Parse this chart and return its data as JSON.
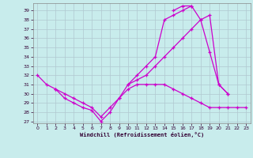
{
  "xlabel": "Windchill (Refroidissement éolien,°C)",
  "background_color": "#c8ecec",
  "grid_color": "#b0c8d0",
  "line_color": "#cc00cc",
  "x_values": [
    0,
    1,
    2,
    3,
    4,
    5,
    6,
    7,
    8,
    9,
    10,
    11,
    12,
    13,
    14,
    15,
    16,
    17,
    18,
    19,
    20,
    21,
    22,
    23
  ],
  "series1": [
    32,
    31,
    30.5,
    29.5,
    29,
    28.5,
    28.2,
    27.0,
    28,
    29.5,
    31,
    31.5,
    32,
    33,
    34,
    35,
    36,
    37,
    38,
    38.5,
    31,
    30,
    null,
    null
  ],
  "series2": [
    null,
    null,
    null,
    null,
    null,
    null,
    null,
    null,
    null,
    null,
    31,
    32,
    33,
    34,
    38,
    38.5,
    39,
    39.5,
    38,
    34.5,
    31,
    30,
    null,
    null
  ],
  "series3": [
    null,
    null,
    null,
    null,
    null,
    null,
    null,
    null,
    null,
    null,
    null,
    null,
    null,
    null,
    null,
    39,
    39.5,
    39.5,
    null,
    null,
    null,
    null,
    null,
    null
  ],
  "series4": [
    null,
    null,
    30.5,
    30,
    29.5,
    29,
    28.5,
    27.5,
    28.5,
    29.5,
    30.5,
    31,
    31,
    31,
    31,
    30.5,
    30,
    29.5,
    29,
    28.5,
    28.5,
    28.5,
    28.5,
    28.5
  ],
  "xlim": [
    -0.5,
    23.5
  ],
  "ylim": [
    26.8,
    39.8
  ],
  "yticks": [
    27,
    28,
    29,
    30,
    31,
    32,
    33,
    34,
    35,
    36,
    37,
    38,
    39
  ],
  "xticks": [
    0,
    1,
    2,
    3,
    4,
    5,
    6,
    7,
    8,
    9,
    10,
    11,
    12,
    13,
    14,
    15,
    16,
    17,
    18,
    19,
    20,
    21,
    22,
    23
  ]
}
